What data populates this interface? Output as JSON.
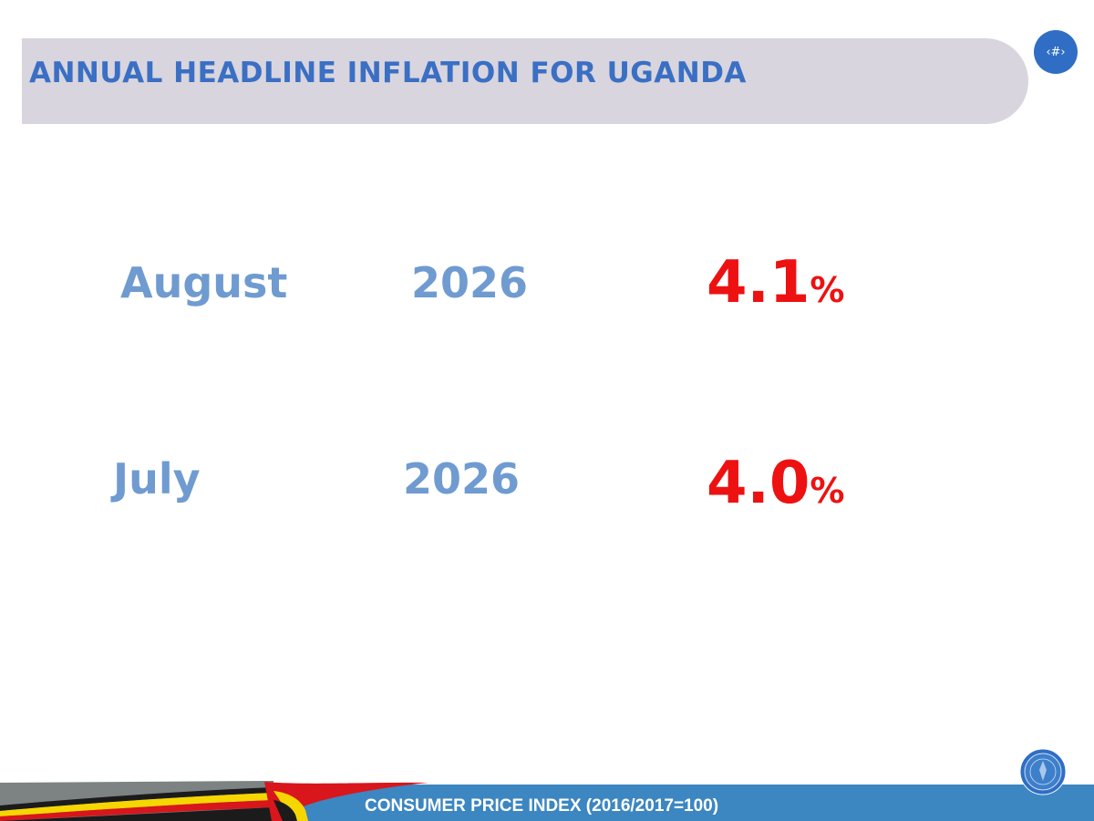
{
  "header": {
    "title": "ANNUAL HEADLINE INFLATION FOR UGANDA",
    "page_number": "‹#›"
  },
  "rows": [
    {
      "month": "August",
      "year": "2026",
      "rate": "4.1",
      "unit": "%"
    },
    {
      "month": "July",
      "year": "2026",
      "rate": "4.0",
      "unit": "%"
    }
  ],
  "footer": {
    "text": "CONSUMER PRICE INDEX (2016/2017=100)"
  },
  "colors": {
    "title": "#3a6fc4",
    "labels": "#6f9bd0",
    "rates": "#ee1111",
    "footer_bar": "#3c86c1",
    "banner": "#d8d5de"
  },
  "icons": {
    "flag": "uganda-flag-ribbon-icon",
    "logo": "ubos-emblem-icon"
  }
}
